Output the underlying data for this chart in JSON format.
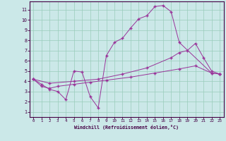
{
  "xlabel": "Windchill (Refroidissement éolien,°C)",
  "bg_color": "#cbe8e8",
  "line_color": "#993399",
  "grid_color": "#99ccbb",
  "xlim": [
    -0.5,
    23.5
  ],
  "ylim": [
    0.5,
    11.8
  ],
  "xticks": [
    0,
    1,
    2,
    3,
    4,
    5,
    6,
    7,
    8,
    9,
    10,
    11,
    12,
    13,
    14,
    15,
    16,
    17,
    18,
    19,
    20,
    21,
    22,
    23
  ],
  "yticks": [
    1,
    2,
    3,
    4,
    5,
    6,
    7,
    8,
    9,
    10,
    11
  ],
  "series1": [
    [
      0,
      4.2
    ],
    [
      1,
      3.7
    ],
    [
      2,
      3.2
    ],
    [
      3,
      3.0
    ],
    [
      4,
      2.2
    ],
    [
      5,
      5.0
    ],
    [
      6,
      4.9
    ],
    [
      7,
      2.5
    ],
    [
      8,
      1.4
    ],
    [
      9,
      6.5
    ],
    [
      10,
      7.8
    ],
    [
      11,
      8.2
    ],
    [
      12,
      9.2
    ],
    [
      13,
      10.1
    ],
    [
      14,
      10.4
    ],
    [
      15,
      11.3
    ],
    [
      16,
      11.4
    ],
    [
      17,
      10.8
    ],
    [
      18,
      7.8
    ],
    [
      22,
      4.8
    ],
    [
      23,
      4.7
    ]
  ],
  "series2": [
    [
      0,
      4.2
    ],
    [
      1,
      3.5
    ],
    [
      2,
      3.3
    ],
    [
      3,
      3.5
    ],
    [
      5,
      3.7
    ],
    [
      7,
      3.9
    ],
    [
      9,
      4.1
    ],
    [
      12,
      4.4
    ],
    [
      15,
      4.8
    ],
    [
      18,
      5.2
    ],
    [
      20,
      5.5
    ],
    [
      22,
      4.8
    ],
    [
      23,
      4.7
    ]
  ],
  "series3": [
    [
      0,
      4.2
    ],
    [
      2,
      3.8
    ],
    [
      5,
      4.0
    ],
    [
      8,
      4.2
    ],
    [
      11,
      4.7
    ],
    [
      14,
      5.3
    ],
    [
      17,
      6.3
    ],
    [
      18,
      6.8
    ],
    [
      19,
      7.0
    ],
    [
      20,
      7.7
    ],
    [
      21,
      6.3
    ],
    [
      22,
      5.0
    ],
    [
      23,
      4.7
    ]
  ]
}
